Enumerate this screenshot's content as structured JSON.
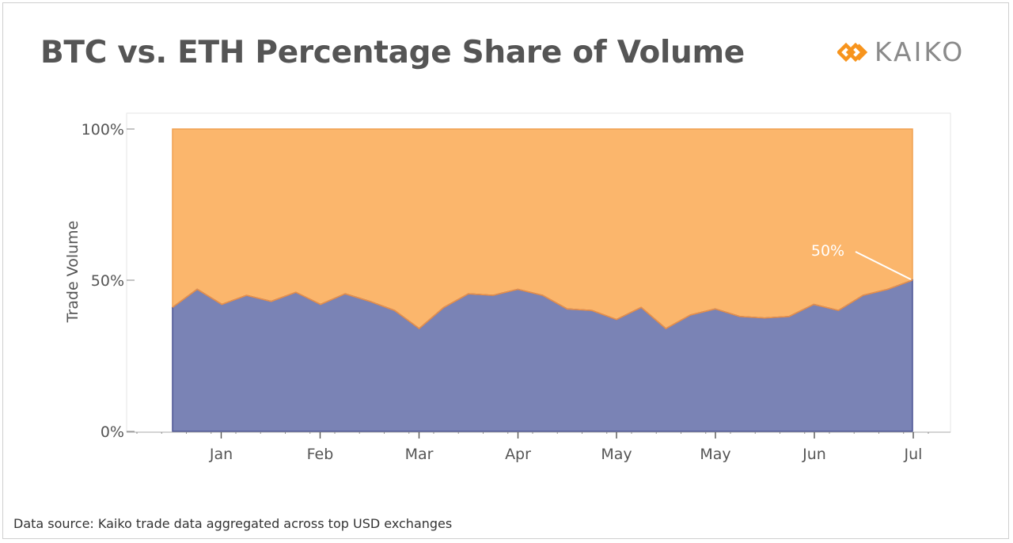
{
  "header": {
    "title": "BTC vs. ETH Percentage Share of Volume",
    "brand": "KAIKO",
    "brand_color": "#f7941d",
    "brand_icon": "kaiko-diamond-icon"
  },
  "footer": {
    "source": "Data source: Kaiko trade data aggregated across top USD exchanges"
  },
  "chart_data": {
    "type": "area",
    "stacked": "percent",
    "ylabel": "Trade Volume",
    "yticks": [
      "0%",
      "50%",
      "100%"
    ],
    "ylim": [
      0,
      100
    ],
    "xticks": [
      "Jan",
      "Feb",
      "Mar",
      "Apr",
      "May",
      "May",
      "Jun",
      "Jul"
    ],
    "grid": false,
    "legend": "none",
    "annotation": {
      "text": "50%"
    },
    "series": [
      {
        "color": "#7a83b5",
        "values": [
          41,
          47,
          42,
          45,
          43,
          46,
          42,
          45.5,
          43,
          40,
          34,
          41,
          45.5,
          45,
          47,
          45,
          40.5,
          40,
          37,
          41,
          34,
          38.5,
          40.5,
          38,
          37.5,
          38,
          42,
          40,
          45,
          47,
          50
        ]
      },
      {
        "color": "#fbb66c",
        "values": [
          59,
          53,
          58,
          55,
          57,
          54,
          58,
          54.5,
          57,
          60,
          66,
          59,
          54.5,
          55,
          53,
          55,
          59.5,
          60,
          63,
          59,
          66,
          61.5,
          59.5,
          62,
          62.5,
          62,
          58,
          60,
          55,
          53,
          50
        ]
      }
    ]
  }
}
